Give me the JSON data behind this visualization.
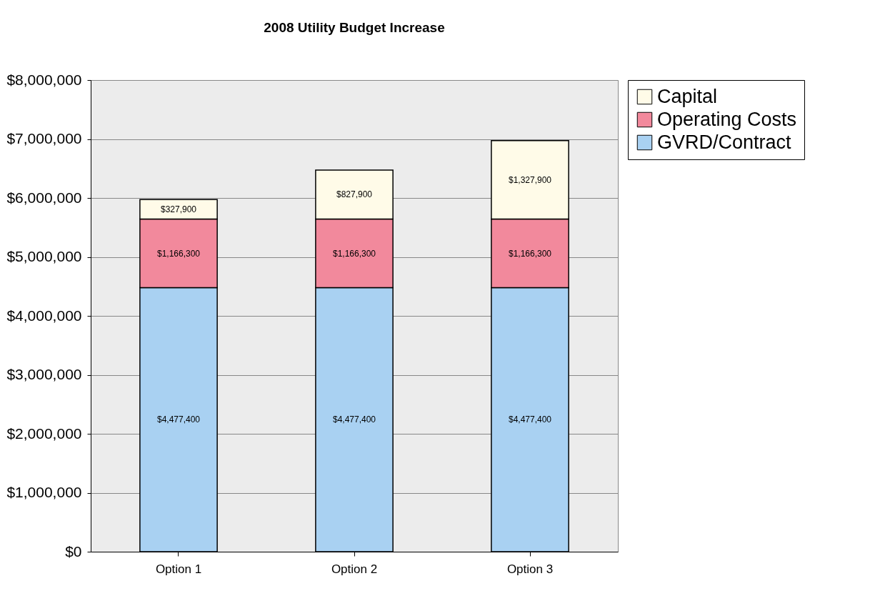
{
  "chart_data": {
    "type": "bar",
    "title": "2008 Utility Budget Increase",
    "categories": [
      "Option 1",
      "Option 2",
      "Option 3"
    ],
    "stacked": true,
    "series": [
      {
        "name": "GVRD/Contract",
        "color": "#a9d1f2",
        "values": [
          4477400,
          4477400,
          4477400
        ],
        "value_labels": [
          "$4,477,400",
          "$4,477,400",
          "$4,477,400"
        ]
      },
      {
        "name": "Operating Costs",
        "color": "#f2899c",
        "values": [
          1166300,
          1166300,
          1166300
        ],
        "value_labels": [
          "$1,166,300",
          "$1,166,300",
          "$1,166,300"
        ]
      },
      {
        "name": "Capital",
        "color": "#fffbe8",
        "values": [
          327900,
          827900,
          1327900
        ],
        "value_labels": [
          "$327,900",
          "$827,900",
          "$1,327,900"
        ]
      }
    ],
    "ylim": [
      0,
      8000000
    ],
    "yticks": [
      {
        "value": 0,
        "label": "$0"
      },
      {
        "value": 1000000,
        "label": "$1,000,000"
      },
      {
        "value": 2000000,
        "label": "$2,000,000"
      },
      {
        "value": 3000000,
        "label": "$3,000,000"
      },
      {
        "value": 4000000,
        "label": "$4,000,000"
      },
      {
        "value": 5000000,
        "label": "$5,000,000"
      },
      {
        "value": 6000000,
        "label": "$6,000,000"
      },
      {
        "value": 7000000,
        "label": "$7,000,000"
      },
      {
        "value": 8000000,
        "label": "$8,000,000"
      }
    ],
    "grid": "y",
    "legend": "right"
  }
}
